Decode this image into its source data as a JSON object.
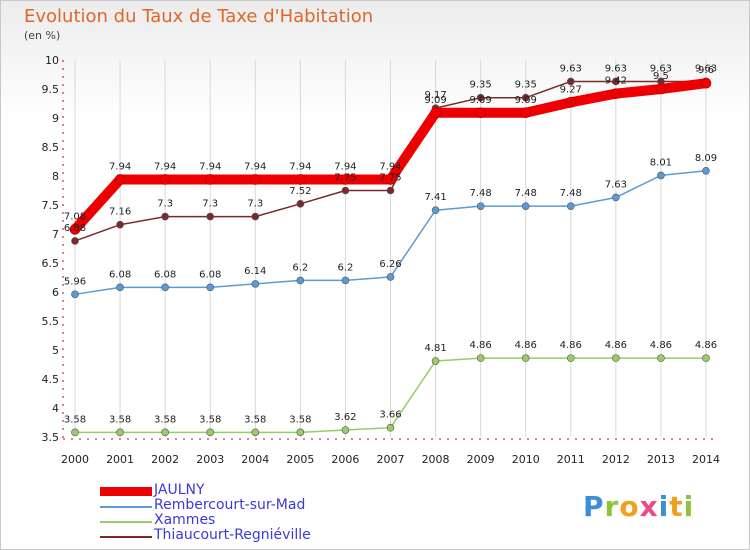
{
  "chart_data": {
    "type": "line",
    "title": "Evolution du Taux de Taxe d'Habitation",
    "subtitle": "(en %)",
    "categories": [
      "2000",
      "2001",
      "2002",
      "2003",
      "2004",
      "2005",
      "2006",
      "2007",
      "2008",
      "2009",
      "2010",
      "2011",
      "2012",
      "2013",
      "2014"
    ],
    "ylim": [
      3.5,
      10
    ],
    "yticks": [
      "3.5",
      "4",
      "4.5",
      "5",
      "5.5",
      "6",
      "6.5",
      "7",
      "7.5",
      "8",
      "8.5",
      "9",
      "9.5",
      "10"
    ],
    "grid": "vertical",
    "legend_position": "bottom-left",
    "series": [
      {
        "name": "JAULNY",
        "color": "#ee0000",
        "values": [
          7.08,
          7.94,
          7.94,
          7.94,
          7.94,
          7.94,
          7.94,
          7.94,
          9.09,
          9.09,
          9.09,
          9.27,
          9.42,
          9.5,
          9.6
        ],
        "labels": [
          "7.08",
          "7.94",
          "7.94",
          "7.94",
          "7.94",
          "7.94",
          "7.94",
          "7.94",
          "9.09",
          "9.09",
          "9.09",
          "9.27",
          "9.42",
          "9.5",
          "9.6"
        ]
      },
      {
        "name": "Rembercourt-sur-Mad",
        "color": "#5b9bd5",
        "values": [
          5.96,
          6.08,
          6.08,
          6.08,
          6.14,
          6.2,
          6.2,
          6.26,
          7.41,
          7.48,
          7.48,
          7.48,
          7.63,
          8.01,
          8.09
        ],
        "labels": [
          "5.96",
          "6.08",
          "6.08",
          "6.08",
          "6.14",
          "6.2",
          "6.2",
          "6.26",
          "7.41",
          "7.48",
          "7.48",
          "7.48",
          "7.63",
          "8.01",
          "8.09"
        ]
      },
      {
        "name": "Xammes",
        "color": "#99cc66",
        "values": [
          3.58,
          3.58,
          3.58,
          3.58,
          3.58,
          3.58,
          3.62,
          3.66,
          4.81,
          4.86,
          4.86,
          4.86,
          4.86,
          4.86,
          4.86
        ],
        "labels": [
          "3.58",
          "3.58",
          "3.58",
          "3.58",
          "3.58",
          "3.58",
          "3.62",
          "3.66",
          "4.81",
          "4.86",
          "4.86",
          "4.86",
          "4.86",
          "4.86",
          "4.86"
        ]
      },
      {
        "name": "Thiaucourt-Regniéville",
        "color": "#7a2a2a",
        "values": [
          6.88,
          7.16,
          7.3,
          7.3,
          7.3,
          7.52,
          7.75,
          7.75,
          9.17,
          9.35,
          9.35,
          9.63,
          9.63,
          9.63,
          9.63
        ],
        "labels": [
          "6.88",
          "7.16",
          "7.3",
          "7.3",
          "7.3",
          "7.52",
          "7.75",
          "7.75",
          "9.17",
          "9.35",
          "9.35",
          "9.63",
          "9.63",
          "9.63",
          "9.63"
        ]
      }
    ]
  },
  "branding": {
    "logo_letters": [
      "P",
      "r",
      "o",
      "x",
      "i",
      "t",
      "i"
    ]
  }
}
